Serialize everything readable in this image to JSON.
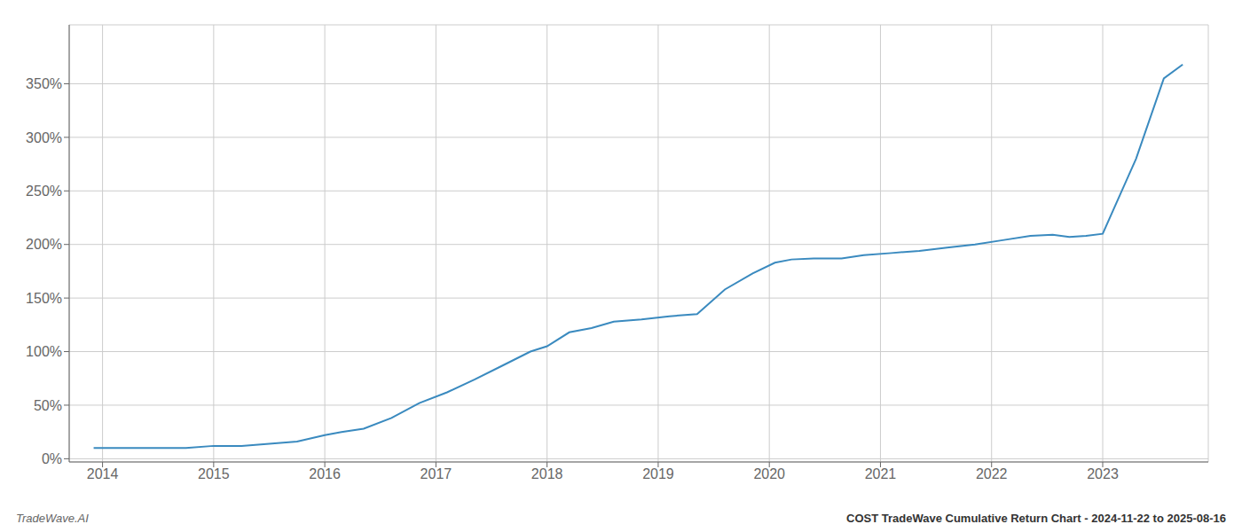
{
  "chart_data": {
    "type": "line",
    "title": "COST TradeWave Cumulative Return Chart - 2024-11-22 to 2025-08-16",
    "annotations": [
      "TradeWave.AI"
    ],
    "x": [
      2013.92,
      2014.0,
      2014.25,
      2014.5,
      2014.75,
      2015.0,
      2015.25,
      2015.5,
      2015.75,
      2016.0,
      2016.15,
      2016.35,
      2016.6,
      2016.85,
      2017.1,
      2017.35,
      2017.6,
      2017.85,
      2018.0,
      2018.2,
      2018.4,
      2018.6,
      2018.85,
      2019.1,
      2019.35,
      2019.6,
      2019.85,
      2020.05,
      2020.2,
      2020.4,
      2020.65,
      2020.85,
      2021.1,
      2021.35,
      2021.6,
      2021.85,
      2022.1,
      2022.35,
      2022.55,
      2022.7,
      2022.85,
      2023.0,
      2023.3,
      2023.55,
      2023.72
    ],
    "values": [
      0.1,
      0.1,
      0.1,
      0.1,
      0.1,
      0.12,
      0.12,
      0.14,
      0.16,
      0.22,
      0.25,
      0.28,
      0.38,
      0.52,
      0.62,
      0.74,
      0.87,
      1.0,
      1.05,
      1.18,
      1.22,
      1.28,
      1.3,
      1.33,
      1.35,
      1.58,
      1.73,
      1.83,
      1.86,
      1.87,
      1.87,
      1.9,
      1.92,
      1.94,
      1.97,
      2.0,
      2.04,
      2.08,
      2.09,
      2.07,
      2.08,
      2.1,
      2.8,
      3.55,
      3.68
    ],
    "color": "#3a8abf",
    "xlim": [
      2013.7,
      2023.95
    ],
    "xticks": [
      2014,
      2015,
      2016,
      2017,
      2018,
      2019,
      2020,
      2021,
      2022,
      2023
    ],
    "ylim": [
      -0.03,
      4.05
    ],
    "yticks": [
      {
        "value": 0.0,
        "label": "0%"
      },
      {
        "value": 0.5,
        "label": "50%"
      },
      {
        "value": 1.0,
        "label": "100%"
      },
      {
        "value": 1.5,
        "label": "150%"
      },
      {
        "value": 2.0,
        "label": "200%"
      },
      {
        "value": 2.5,
        "label": "250%"
      },
      {
        "value": 3.0,
        "label": "300%"
      },
      {
        "value": 3.5,
        "label": "350%"
      }
    ],
    "grid": true
  }
}
